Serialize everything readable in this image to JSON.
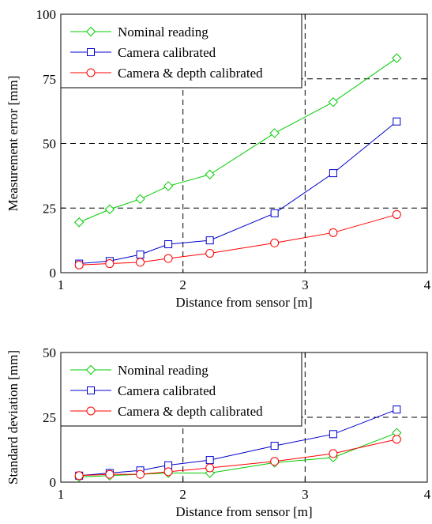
{
  "chart_data": [
    {
      "type": "line",
      "xlabel": "Distance from sensor [m]",
      "ylabel": "Measurement error [mm]",
      "xlim": [
        1,
        4
      ],
      "ylim": [
        0,
        100
      ],
      "xticks": [
        1,
        2,
        3,
        4
      ],
      "yticks": [
        0,
        25,
        50,
        75,
        100
      ],
      "grid": "dashed",
      "legend_position": "top-left",
      "x": [
        1.15,
        1.4,
        1.65,
        1.88,
        2.22,
        2.75,
        3.23,
        3.75
      ],
      "series": [
        {
          "name": "Nominal reading",
          "color": "#00cc00",
          "marker": "diamond",
          "values": [
            19.5,
            24.5,
            28.5,
            33.5,
            38,
            54,
            66,
            83
          ]
        },
        {
          "name": "Camera calibrated",
          "color": "#0000cc",
          "marker": "square",
          "values": [
            3.5,
            4.5,
            7,
            11,
            12.5,
            23,
            38.5,
            58.5
          ]
        },
        {
          "name": "Camera & depth calibrated",
          "color": "#ff0000",
          "marker": "circle",
          "values": [
            3,
            3.5,
            4,
            5.5,
            7.5,
            11.5,
            15.5,
            22.5
          ]
        }
      ]
    },
    {
      "type": "line",
      "xlabel": "Distance from sensor [m]",
      "ylabel": "Standard deviation [mm]",
      "xlim": [
        1,
        4
      ],
      "ylim": [
        0,
        50
      ],
      "xticks": [
        1,
        2,
        3,
        4
      ],
      "yticks": [
        0,
        25,
        50
      ],
      "grid": "dashed",
      "legend_position": "top-left",
      "x": [
        1.15,
        1.4,
        1.65,
        1.88,
        2.22,
        2.75,
        3.23,
        3.75
      ],
      "series": [
        {
          "name": "Nominal reading",
          "color": "#00cc00",
          "marker": "diamond",
          "values": [
            2,
            2.5,
            3,
            3.5,
            3.5,
            7.5,
            9.5,
            19
          ]
        },
        {
          "name": "Camera calibrated",
          "color": "#0000cc",
          "marker": "square",
          "values": [
            2.5,
            3.5,
            4.5,
            6.5,
            8.5,
            14,
            18.5,
            28
          ]
        },
        {
          "name": "Camera & depth calibrated",
          "color": "#ff0000",
          "marker": "circle",
          "values": [
            2.5,
            3,
            3,
            4,
            5.5,
            8,
            11,
            16.5
          ]
        }
      ]
    }
  ]
}
